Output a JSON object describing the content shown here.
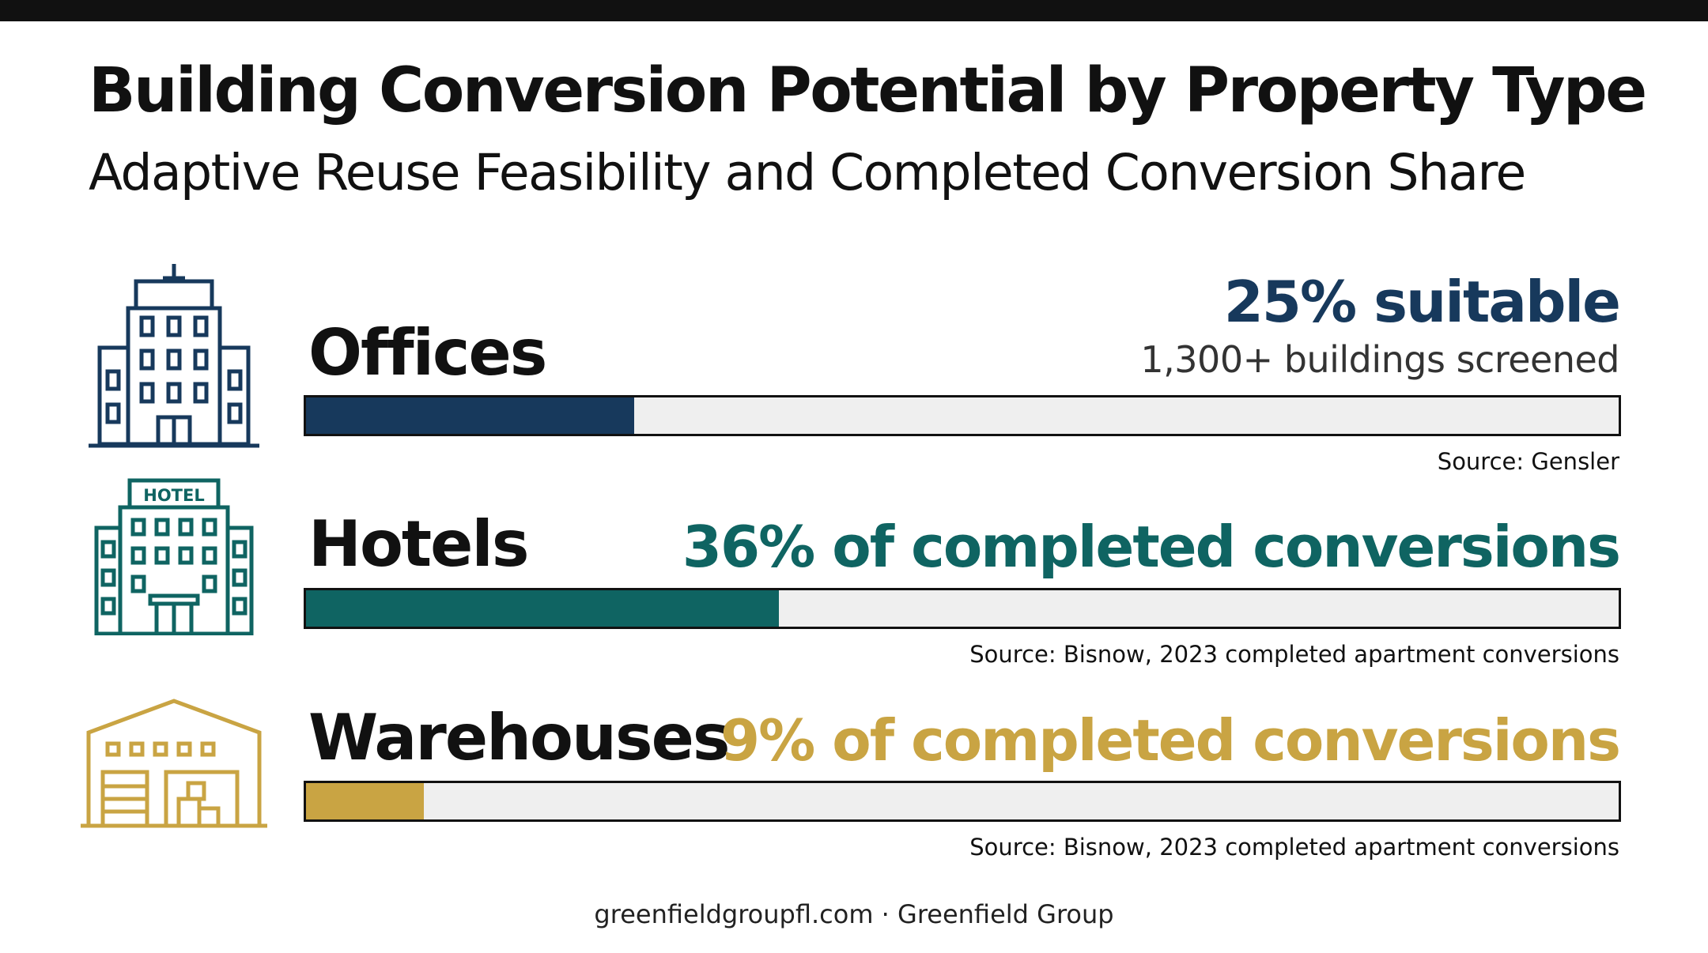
{
  "title": "Building Conversion Potential by Property Type",
  "subtitle": "Adaptive Reuse Feasibility and Completed Conversion Share",
  "footer": "greenfieldgroupfl.com · Greenfield Group",
  "colors": {
    "offices": "#17395c",
    "hotels": "#0f6462",
    "warehouses": "#c9a443",
    "track": "#efefef",
    "text": "#111111"
  },
  "rows": [
    {
      "label": "Offices",
      "stat": "25% suitable",
      "substat": "1,300+ buildings screened",
      "source": "Source: Gensler",
      "icon": "office-building-icon"
    },
    {
      "label": "Hotels",
      "stat": "36% of completed conversions",
      "source": "Source: Bisnow, 2023 completed apartment conversions",
      "icon": "hotel-building-icon",
      "icon_text": "HOTEL"
    },
    {
      "label": "Warehouses",
      "stat": "9% of completed conversions",
      "source": "Source: Bisnow, 2023 completed apartment conversions",
      "icon": "warehouse-icon"
    }
  ],
  "chart_data": {
    "type": "bar",
    "orientation": "horizontal",
    "categories": [
      "Offices",
      "Hotels",
      "Warehouses"
    ],
    "values": [
      25,
      36,
      9
    ],
    "unit": "%",
    "xlim": [
      0,
      100
    ]
  }
}
